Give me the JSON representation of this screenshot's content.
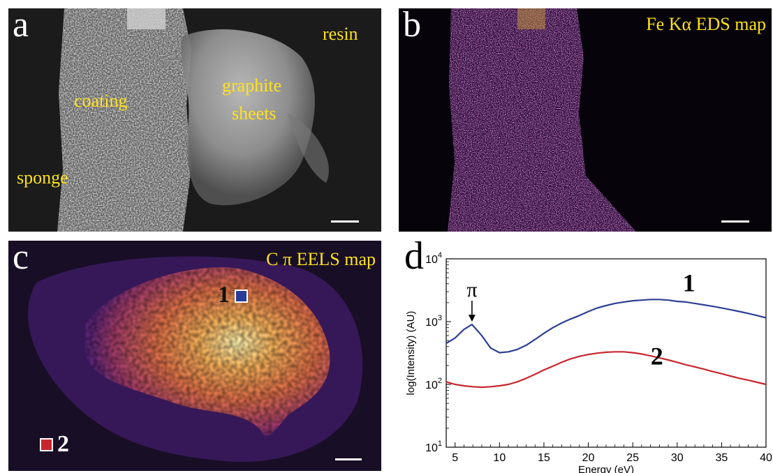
{
  "colors": {
    "label_yellow": "#ffe21a",
    "panel_letter_white": "#ffffff",
    "series_1": "#2c3f92",
    "series_2": "#c8262e",
    "marker_1": "#2a3d96",
    "marker_2": "#c8262e"
  },
  "panel_a": {
    "letter": "a",
    "labels": {
      "resin": "resin",
      "coating": "coating",
      "graphite": "graphite",
      "sheets": "sheets",
      "sponge": "sponge"
    }
  },
  "panel_b": {
    "letter": "b",
    "title": "Fe Kα EDS map"
  },
  "panel_c": {
    "letter": "c",
    "title": "C π EELS map",
    "marker_1_label": "1",
    "marker_2_label": "2"
  },
  "chart_data": {
    "panel_letter": "d",
    "type": "line",
    "xlabel": "Energy (eV)",
    "ylabel": "log(Intensity) (AU)",
    "y_scale": "log",
    "xlim": [
      4,
      40
    ],
    "ylim": [
      10,
      10000
    ],
    "x_ticks": [
      "5",
      "10",
      "15",
      "20",
      "25",
      "30",
      "35",
      "40"
    ],
    "y_ticks": [
      {
        "base": "10",
        "exp": "1",
        "value": 10
      },
      {
        "base": "10",
        "exp": "2",
        "value": 100
      },
      {
        "base": "10",
        "exp": "3",
        "value": 1000
      },
      {
        "base": "10",
        "exp": "4",
        "value": 10000
      }
    ],
    "annotation": "π",
    "annotation_x": 6.9,
    "series": [
      {
        "label": "1",
        "x": [
          4,
          5,
          6,
          6.9,
          8,
          9,
          10,
          11,
          12,
          13,
          14,
          15,
          16,
          17,
          18,
          19,
          20,
          21,
          22,
          23,
          24,
          25,
          26,
          27,
          28,
          29,
          30,
          31,
          32,
          33,
          34,
          35,
          36,
          37,
          38,
          39,
          40
        ],
        "y": [
          450,
          550,
          750,
          900,
          600,
          380,
          320,
          330,
          360,
          420,
          520,
          650,
          800,
          950,
          1100,
          1250,
          1450,
          1650,
          1800,
          1950,
          2050,
          2150,
          2200,
          2250,
          2250,
          2200,
          2100,
          2050,
          1950,
          1850,
          1750,
          1650,
          1550,
          1450,
          1350,
          1250,
          1150
        ]
      },
      {
        "label": "2",
        "x": [
          4,
          5,
          6,
          7,
          8,
          9,
          10,
          11,
          12,
          13,
          14,
          15,
          16,
          17,
          18,
          19,
          20,
          21,
          22,
          23,
          24,
          25,
          26,
          27,
          28,
          29,
          30,
          31,
          32,
          33,
          34,
          35,
          36,
          37,
          38,
          39,
          40
        ],
        "y": [
          110,
          100,
          95,
          92,
          90,
          92,
          95,
          100,
          110,
          125,
          145,
          170,
          195,
          225,
          255,
          280,
          300,
          315,
          325,
          330,
          330,
          320,
          305,
          285,
          265,
          245,
          225,
          205,
          190,
          175,
          160,
          148,
          136,
          125,
          117,
          108,
          100
        ]
      }
    ]
  }
}
